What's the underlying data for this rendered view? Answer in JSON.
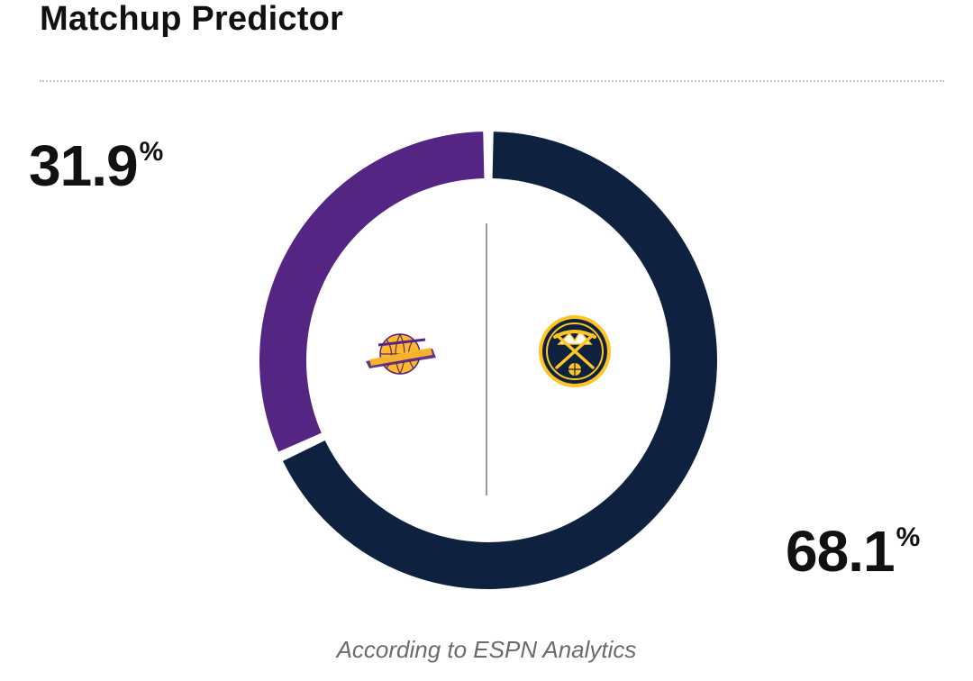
{
  "header": {
    "title": "Matchup Predictor"
  },
  "chart_data": {
    "type": "pie",
    "series": [
      {
        "team": "Lakers",
        "value": 31.9,
        "color": "#552583"
      },
      {
        "team": "Nuggets",
        "value": 68.1,
        "color": "#0e2240"
      }
    ],
    "labels": {
      "away_value": "31.9",
      "home_value": "68.1",
      "unit": "%"
    },
    "logo_icons": {
      "away": "lakers-logo-icon",
      "home": "nuggets-logo-icon"
    },
    "colors": {
      "lakers_purple": "#552583",
      "lakers_gold": "#fdb927",
      "nuggets_navy": "#0e2240",
      "nuggets_gold": "#fec524"
    }
  },
  "footer": {
    "source": "According to ESPN Analytics"
  }
}
